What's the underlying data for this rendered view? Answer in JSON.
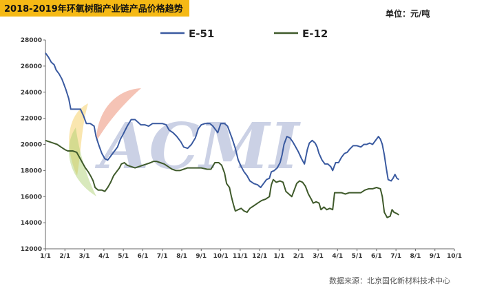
{
  "chart_data": {
    "type": "line",
    "title": "2018-2019年环氧树脂产业链产品价格趋势",
    "unit": "单位：元/吨",
    "source": "数据来源：北京国化新材料技术中心",
    "watermark": "ACMI",
    "ylim": [
      12000,
      28000
    ],
    "yticks": [
      "12000",
      "14000",
      "16000",
      "18000",
      "20000",
      "22000",
      "24000",
      "26000",
      "28000"
    ],
    "xlim": [
      0,
      21
    ],
    "xticks": [
      "1/1",
      "2/1",
      "3/1",
      "4/1",
      "5/1",
      "6/1",
      "7/1",
      "8/1",
      "9/1",
      "10/1",
      "11/1",
      "12/1",
      "1/1",
      "2/1",
      "3/1",
      "4/1",
      "5/1",
      "6/1",
      "7/1",
      "8/1",
      "9/1",
      "10/1"
    ],
    "legend_position": "top",
    "series": [
      {
        "name": "E-51",
        "color": "#3a5aa0",
        "points": [
          [
            0,
            27000
          ],
          [
            0.15,
            26700
          ],
          [
            0.3,
            26300
          ],
          [
            0.45,
            26100
          ],
          [
            0.55,
            25700
          ],
          [
            0.7,
            25400
          ],
          [
            0.85,
            25000
          ],
          [
            0.95,
            24600
          ],
          [
            1.05,
            24200
          ],
          [
            1.2,
            23500
          ],
          [
            1.3,
            22700
          ],
          [
            1.45,
            22700
          ],
          [
            1.8,
            22700
          ],
          [
            1.95,
            22200
          ],
          [
            2.1,
            21600
          ],
          [
            2.3,
            21600
          ],
          [
            2.5,
            21400
          ],
          [
            2.6,
            20600
          ],
          [
            2.75,
            19900
          ],
          [
            2.9,
            19300
          ],
          [
            3.05,
            18900
          ],
          [
            3.2,
            18800
          ],
          [
            3.35,
            19100
          ],
          [
            3.5,
            19400
          ],
          [
            3.7,
            19800
          ],
          [
            3.85,
            20400
          ],
          [
            4.0,
            20800
          ],
          [
            4.2,
            21400
          ],
          [
            4.4,
            21900
          ],
          [
            4.6,
            21900
          ],
          [
            4.75,
            21700
          ],
          [
            4.9,
            21500
          ],
          [
            5.1,
            21500
          ],
          [
            5.3,
            21400
          ],
          [
            5.5,
            21600
          ],
          [
            5.7,
            21600
          ],
          [
            6.0,
            21600
          ],
          [
            6.2,
            21500
          ],
          [
            6.35,
            21100
          ],
          [
            6.55,
            20900
          ],
          [
            6.75,
            20600
          ],
          [
            6.95,
            20200
          ],
          [
            7.1,
            19800
          ],
          [
            7.3,
            19700
          ],
          [
            7.5,
            20000
          ],
          [
            7.7,
            20500
          ],
          [
            7.85,
            21200
          ],
          [
            8.0,
            21500
          ],
          [
            8.2,
            21600
          ],
          [
            8.45,
            21600
          ],
          [
            8.6,
            21400
          ],
          [
            8.75,
            21100
          ],
          [
            8.85,
            20900
          ],
          [
            9.0,
            21600
          ],
          [
            9.2,
            21600
          ],
          [
            9.35,
            21400
          ],
          [
            9.5,
            20800
          ],
          [
            9.6,
            20400
          ],
          [
            9.75,
            19700
          ],
          [
            9.9,
            18800
          ],
          [
            10.05,
            18300
          ],
          [
            10.2,
            17900
          ],
          [
            10.35,
            17600
          ],
          [
            10.5,
            17200
          ],
          [
            10.7,
            17000
          ],
          [
            10.9,
            16900
          ],
          [
            11.05,
            16700
          ],
          [
            11.2,
            17000
          ],
          [
            11.35,
            17300
          ],
          [
            11.5,
            17400
          ],
          [
            11.6,
            17900
          ],
          [
            11.75,
            18000
          ],
          [
            11.9,
            18200
          ],
          [
            12.05,
            18600
          ],
          [
            12.15,
            19200
          ],
          [
            12.25,
            20000
          ],
          [
            12.4,
            20600
          ],
          [
            12.55,
            20500
          ],
          [
            12.7,
            20200
          ],
          [
            12.85,
            19800
          ],
          [
            13.0,
            19400
          ],
          [
            13.15,
            18900
          ],
          [
            13.3,
            18500
          ],
          [
            13.45,
            19600
          ],
          [
            13.55,
            20100
          ],
          [
            13.7,
            20300
          ],
          [
            13.85,
            20100
          ],
          [
            13.95,
            19800
          ],
          [
            14.05,
            19300
          ],
          [
            14.2,
            18800
          ],
          [
            14.35,
            18500
          ],
          [
            14.5,
            18500
          ],
          [
            14.65,
            18300
          ],
          [
            14.75,
            18000
          ],
          [
            14.9,
            18600
          ],
          [
            15.05,
            18600
          ],
          [
            15.2,
            19000
          ],
          [
            15.35,
            19300
          ],
          [
            15.5,
            19400
          ],
          [
            15.6,
            19600
          ],
          [
            15.8,
            19900
          ],
          [
            16.0,
            19900
          ],
          [
            16.2,
            19800
          ],
          [
            16.35,
            20000
          ],
          [
            16.5,
            20000
          ],
          [
            16.65,
            20100
          ],
          [
            16.8,
            20000
          ],
          [
            17.0,
            20400
          ],
          [
            17.1,
            20600
          ],
          [
            17.2,
            20400
          ],
          [
            17.3,
            20000
          ],
          [
            17.4,
            19200
          ],
          [
            17.5,
            18200
          ],
          [
            17.6,
            17300
          ],
          [
            17.75,
            17200
          ],
          [
            17.85,
            17400
          ],
          [
            17.95,
            17700
          ],
          [
            18.05,
            17400
          ],
          [
            18.15,
            17300
          ]
        ]
      },
      {
        "name": "E-12",
        "color": "#3f5a2b",
        "points": [
          [
            0,
            20300
          ],
          [
            0.2,
            20200
          ],
          [
            0.4,
            20100
          ],
          [
            0.6,
            20000
          ],
          [
            0.8,
            19800
          ],
          [
            1.0,
            19600
          ],
          [
            1.15,
            19500
          ],
          [
            1.4,
            19500
          ],
          [
            1.6,
            19400
          ],
          [
            1.75,
            19000
          ],
          [
            1.9,
            18600
          ],
          [
            2.05,
            18200
          ],
          [
            2.2,
            17900
          ],
          [
            2.35,
            17500
          ],
          [
            2.45,
            17200
          ],
          [
            2.55,
            16700
          ],
          [
            2.7,
            16500
          ],
          [
            2.9,
            16500
          ],
          [
            3.05,
            16400
          ],
          [
            3.2,
            16700
          ],
          [
            3.35,
            17100
          ],
          [
            3.5,
            17600
          ],
          [
            3.65,
            17900
          ],
          [
            3.8,
            18200
          ],
          [
            3.9,
            18500
          ],
          [
            4.05,
            18600
          ],
          [
            4.2,
            18400
          ],
          [
            4.4,
            18300
          ],
          [
            4.6,
            18200
          ],
          [
            4.8,
            18300
          ],
          [
            5.0,
            18400
          ],
          [
            5.2,
            18500
          ],
          [
            5.4,
            18600
          ],
          [
            5.55,
            18700
          ],
          [
            5.7,
            18700
          ],
          [
            5.9,
            18600
          ],
          [
            6.1,
            18500
          ],
          [
            6.3,
            18300
          ],
          [
            6.5,
            18100
          ],
          [
            6.7,
            18000
          ],
          [
            6.9,
            18000
          ],
          [
            7.1,
            18100
          ],
          [
            7.3,
            18200
          ],
          [
            7.5,
            18200
          ],
          [
            7.7,
            18200
          ],
          [
            8.0,
            18200
          ],
          [
            8.3,
            18100
          ],
          [
            8.5,
            18100
          ],
          [
            8.7,
            18600
          ],
          [
            8.9,
            18600
          ],
          [
            9.05,
            18400
          ],
          [
            9.2,
            17800
          ],
          [
            9.3,
            17000
          ],
          [
            9.45,
            16700
          ],
          [
            9.55,
            16000
          ],
          [
            9.65,
            15400
          ],
          [
            9.75,
            14900
          ],
          [
            9.9,
            15000
          ],
          [
            10.05,
            15100
          ],
          [
            10.2,
            14900
          ],
          [
            10.35,
            14800
          ],
          [
            10.5,
            15100
          ],
          [
            10.7,
            15300
          ],
          [
            10.9,
            15500
          ],
          [
            11.1,
            15700
          ],
          [
            11.3,
            15800
          ],
          [
            11.5,
            16000
          ],
          [
            11.6,
            16900
          ],
          [
            11.7,
            17300
          ],
          [
            11.85,
            17100
          ],
          [
            12.05,
            17200
          ],
          [
            12.2,
            17100
          ],
          [
            12.35,
            16400
          ],
          [
            12.5,
            16200
          ],
          [
            12.65,
            16000
          ],
          [
            12.8,
            16600
          ],
          [
            12.9,
            17000
          ],
          [
            13.05,
            17200
          ],
          [
            13.2,
            17100
          ],
          [
            13.35,
            16800
          ],
          [
            13.5,
            16200
          ],
          [
            13.65,
            15800
          ],
          [
            13.75,
            15500
          ],
          [
            13.9,
            15600
          ],
          [
            14.05,
            15500
          ],
          [
            14.15,
            15000
          ],
          [
            14.3,
            15200
          ],
          [
            14.45,
            15000
          ],
          [
            14.6,
            15100
          ],
          [
            14.75,
            15000
          ],
          [
            14.85,
            16300
          ],
          [
            15.0,
            16300
          ],
          [
            15.2,
            16300
          ],
          [
            15.4,
            16200
          ],
          [
            15.6,
            16300
          ],
          [
            15.8,
            16300
          ],
          [
            16.0,
            16300
          ],
          [
            16.2,
            16300
          ],
          [
            16.4,
            16500
          ],
          [
            16.6,
            16600
          ],
          [
            16.8,
            16600
          ],
          [
            17.0,
            16700
          ],
          [
            17.2,
            16600
          ],
          [
            17.3,
            16000
          ],
          [
            17.4,
            14800
          ],
          [
            17.55,
            14400
          ],
          [
            17.7,
            14500
          ],
          [
            17.8,
            15000
          ],
          [
            17.9,
            14800
          ],
          [
            18.05,
            14700
          ],
          [
            18.15,
            14600
          ]
        ]
      }
    ]
  }
}
